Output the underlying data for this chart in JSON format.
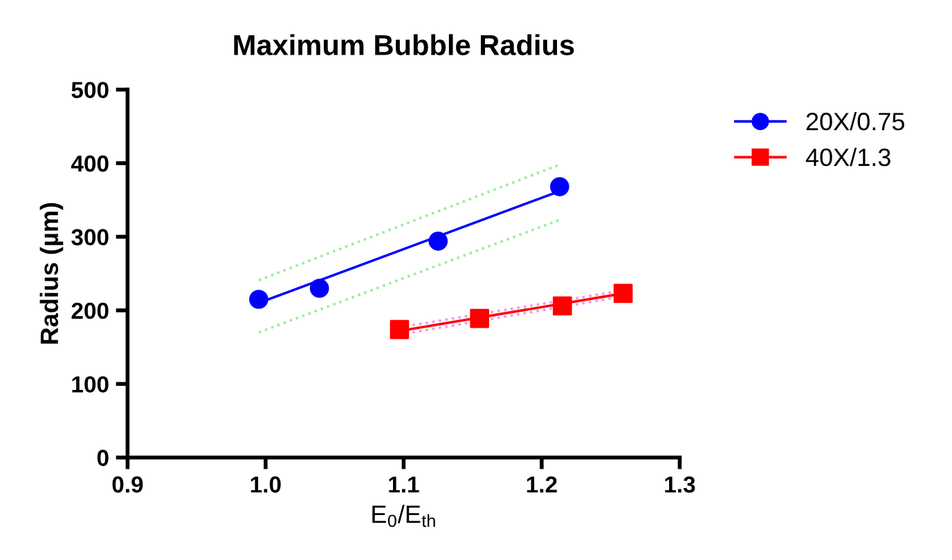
{
  "chart_data": {
    "type": "scatter",
    "title": "Maximum Bubble Radius",
    "xlabel": "E$_{0}$/E$_{th}$",
    "ylabel": "Radius (µm)",
    "xlim": [
      0.9,
      1.3
    ],
    "xticks": [
      {
        "value": 0.9,
        "label": "0.9"
      },
      {
        "value": 1.0,
        "label": "1.0"
      },
      {
        "value": 1.1,
        "label": "1.1"
      },
      {
        "value": 1.2,
        "label": "1.2"
      },
      {
        "value": 1.3,
        "label": "1.3"
      }
    ],
    "ylim": [
      0,
      500
    ],
    "yticks": [
      0,
      100,
      200,
      300,
      400,
      500
    ],
    "grid": false,
    "legend": "top right",
    "series": [
      {
        "name": "20X/0.75",
        "color": "#0000ff",
        "marker": "circle",
        "x": [
          0.995,
          1.039,
          1.125,
          1.213
        ],
        "values": [
          215,
          230,
          294,
          368
        ]
      },
      {
        "name": "40X/1.3",
        "color": "#ff0000",
        "marker": "square",
        "x": [
          1.097,
          1.155,
          1.215,
          1.259
        ],
        "values": [
          174,
          189,
          206,
          223
        ]
      },
      {
        "type": "line",
        "color": "#0000ff",
        "line_style": "solid",
        "marker": "none",
        "x": [
          0.995,
          1.213
        ],
        "values": [
          210,
          362
        ]
      },
      {
        "type": "line",
        "color": "#99ee99",
        "line_style": "dotted",
        "marker": "none",
        "x": [
          0.995,
          1.213
        ],
        "values": [
          241,
          398
        ]
      },
      {
        "type": "line",
        "color": "#99ee99",
        "line_style": "dotted",
        "marker": "none",
        "x": [
          0.995,
          1.213
        ],
        "values": [
          170,
          323
        ]
      },
      {
        "type": "line",
        "color": "#ff0000",
        "line_style": "solid",
        "marker": "none",
        "x": [
          1.097,
          1.259
        ],
        "values": [
          172,
          223
        ]
      },
      {
        "type": "line",
        "color": "#ee99ee",
        "line_style": "dotted",
        "marker": "none",
        "x": [
          1.097,
          1.259
        ],
        "values": [
          177,
          227
        ]
      },
      {
        "type": "line",
        "color": "#ee99ee",
        "line_style": "dotted",
        "marker": "none",
        "x": [
          1.097,
          1.259
        ],
        "values": [
          167,
          219
        ]
      }
    ]
  }
}
